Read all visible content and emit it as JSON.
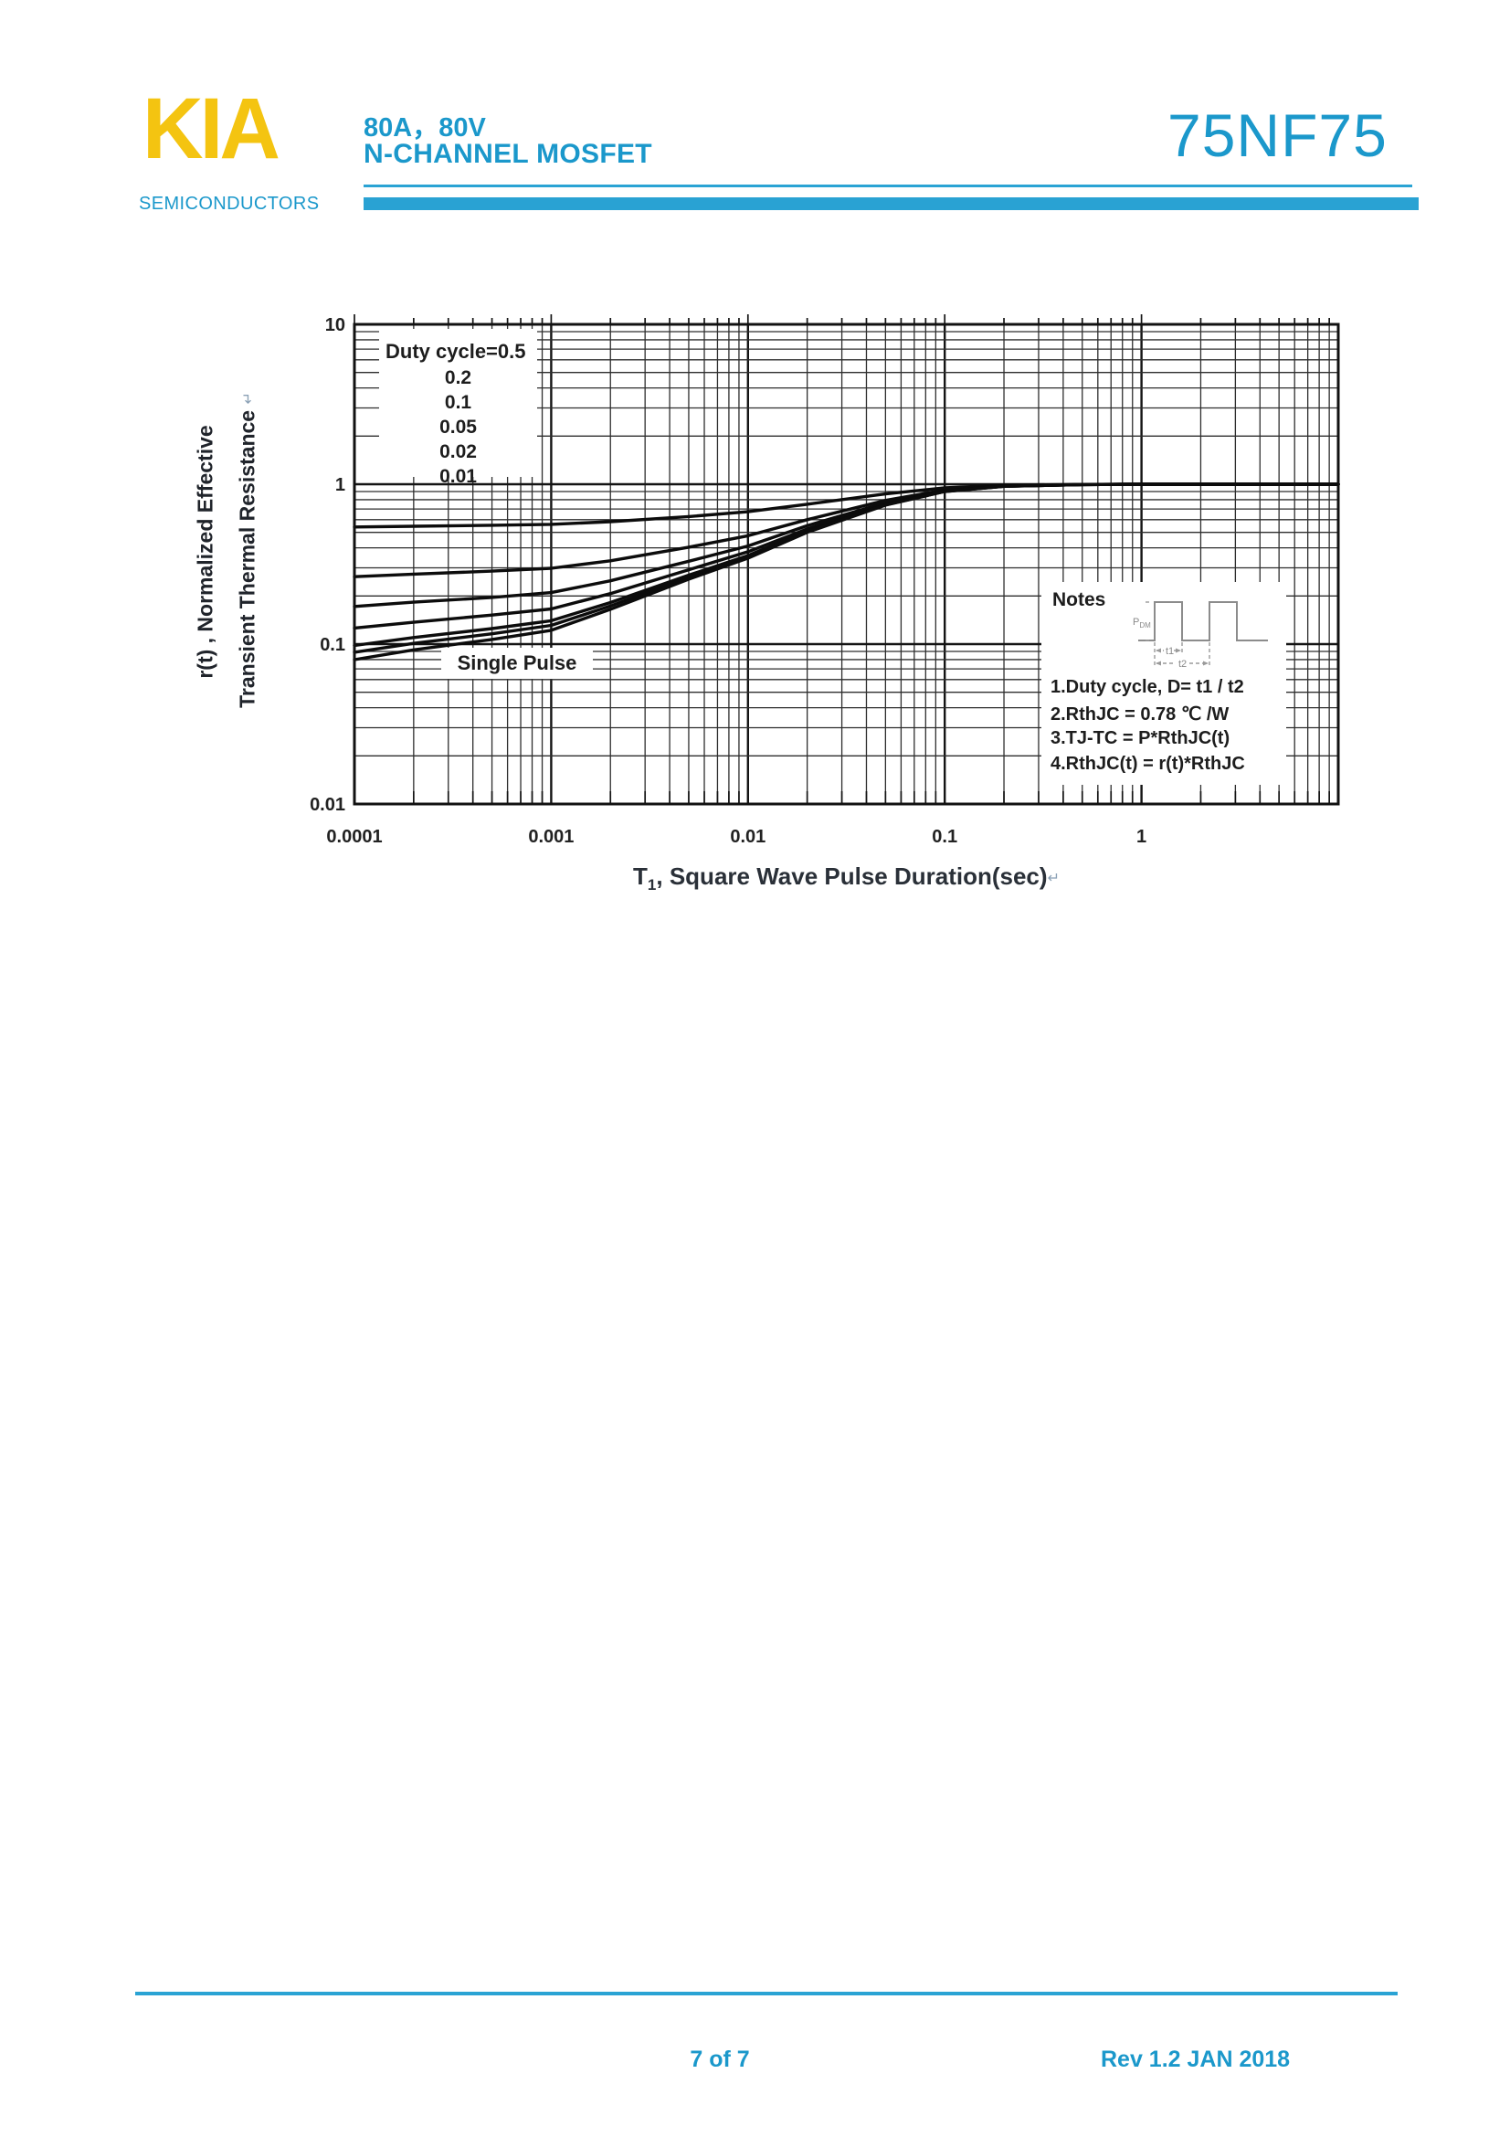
{
  "page": {
    "background": "#ffffff"
  },
  "header": {
    "logo_text": "KIA",
    "logo_subtext": "SEMICONDUCTORS",
    "logo_color": "#f4c411",
    "accent_color": "#1b98cb",
    "rating_line": "80A，80V",
    "device_type": "N-CHANNEL MOSFET",
    "part_number": "75NF75"
  },
  "chart_data": {
    "type": "line",
    "title": "",
    "x_axis": {
      "label_prefix": "T",
      "label_sub": "1",
      "label_rest": ", Square Wave Pulse Duration(sec)",
      "scale": "log",
      "min": 0.0001,
      "max": 10,
      "tick_values": [
        0.0001,
        0.001,
        0.01,
        0.1,
        1
      ],
      "tick_labels": [
        "0.0001",
        "0.001",
        "0.01",
        "0.1",
        "1"
      ]
    },
    "y_axis": {
      "label_line1": "r(t) , Normalized Effective",
      "label_line2": "Transient Thermal Resistance",
      "scale": "log",
      "min": 0.01,
      "max": 10,
      "tick_values": [
        10,
        1,
        0.1,
        0.01
      ],
      "tick_labels": [
        "10",
        "1",
        "0.1",
        "0.01"
      ]
    },
    "return_mark": "↵",
    "grid": "log minor + major, full plot",
    "legend": {
      "title": "Duty cycle=0.5",
      "values": [
        "0.2",
        "0.1",
        "0.05",
        "0.02",
        "0.01"
      ]
    },
    "annotation": "Single Pulse",
    "t_values": [
      0.0001,
      0.0002,
      0.0005,
      0.001,
      0.002,
      0.005,
      0.01,
      0.02,
      0.05,
      0.1,
      0.2,
      0.5,
      1,
      2,
      5,
      10
    ],
    "series": [
      {
        "name": "Duty cycle=0.5",
        "duty": 0.5,
        "r": [
          0.54,
          0.546,
          0.554,
          0.561,
          0.583,
          0.628,
          0.673,
          0.75,
          0.87,
          0.95,
          0.985,
          0.998,
          1,
          1,
          1,
          1
        ]
      },
      {
        "name": "Duty cycle=0.2",
        "duty": 0.2,
        "r": [
          0.264,
          0.274,
          0.286,
          0.298,
          0.332,
          0.404,
          0.476,
          0.6,
          0.792,
          0.92,
          0.976,
          0.996,
          1,
          1,
          1,
          1
        ]
      },
      {
        "name": "Duty cycle=0.1",
        "duty": 0.1,
        "r": [
          0.172,
          0.183,
          0.196,
          0.21,
          0.249,
          0.33,
          0.411,
          0.55,
          0.766,
          0.91,
          0.973,
          0.996,
          1,
          1,
          1,
          1
        ]
      },
      {
        "name": "Duty cycle=0.05",
        "duty": 0.05,
        "r": [
          0.126,
          0.137,
          0.152,
          0.166,
          0.207,
          0.292,
          0.378,
          0.525,
          0.753,
          0.905,
          0.972,
          0.995,
          1,
          1,
          1,
          1
        ]
      },
      {
        "name": "Duty cycle=0.02",
        "duty": 0.02,
        "r": [
          0.098,
          0.11,
          0.125,
          0.14,
          0.182,
          0.27,
          0.358,
          0.51,
          0.745,
          0.902,
          0.971,
          0.995,
          1,
          1,
          1,
          1
        ]
      },
      {
        "name": "Duty cycle=0.01",
        "duty": 0.01,
        "r": [
          0.089,
          0.101,
          0.116,
          0.131,
          0.173,
          0.262,
          0.352,
          0.505,
          0.743,
          0.901,
          0.97,
          0.995,
          1,
          1,
          1,
          1
        ]
      },
      {
        "name": "Single Pulse",
        "duty": 0,
        "r": [
          0.08,
          0.092,
          0.107,
          0.122,
          0.165,
          0.255,
          0.345,
          0.5,
          0.74,
          0.9,
          0.97,
          0.995,
          1,
          1,
          1,
          1
        ]
      }
    ],
    "notes": {
      "title": "Notes",
      "items": [
        "1.Duty cycle, D= t1 / t2",
        "2.RthJC = 0.78 ℃ /W",
        "3.TJ-TC = P*RthJC(t)",
        "4.RthJC(t) = r(t)*RthJC"
      ],
      "waveform": {
        "amplitude_label": "P",
        "amplitude_sub": "DM",
        "t1_label": "t1",
        "t2_label": "t2"
      }
    }
  },
  "footer": {
    "page_indicator": "7 of 7",
    "revision": "Rev 1.2 JAN 2018"
  }
}
